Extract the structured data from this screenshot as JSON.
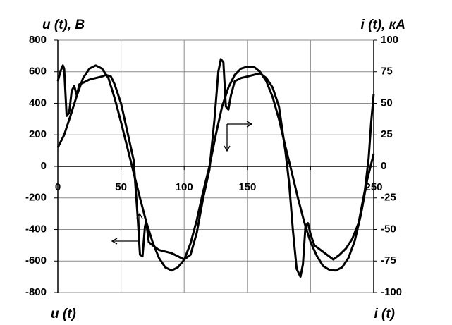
{
  "chart_data": {
    "type": "line",
    "ylabel": "u (t), В",
    "y2label": "i (t), кА",
    "annotations": [
      "u (t)",
      "i (t)"
    ],
    "xlim": [
      0,
      250
    ],
    "xticks": [
      0,
      50,
      100,
      150,
      {
        "value": 200,
        "label": null
      },
      250
    ],
    "ylim": [
      -800,
      800
    ],
    "yticks": [
      -800,
      -600,
      -400,
      -200,
      0,
      200,
      400,
      600,
      800
    ],
    "y2lim": [
      -100,
      100
    ],
    "y2ticks": [
      -100,
      -75,
      -50,
      -25,
      0,
      25,
      50,
      75,
      100
    ],
    "grid": true,
    "series": [
      {
        "name": "u (t)",
        "color": "#000000",
        "x": [
          0,
          2,
          4,
          5,
          7,
          9,
          11,
          13,
          15,
          17,
          20,
          25,
          30,
          35,
          38,
          42,
          45,
          50,
          55,
          60,
          63,
          65,
          67,
          69,
          70,
          72,
          75,
          80,
          85,
          90,
          95,
          100,
          105,
          110,
          115,
          120,
          124,
          127,
          129,
          131,
          133,
          135,
          137,
          140,
          145,
          150,
          155,
          160,
          165,
          170,
          175,
          180,
          183,
          186,
          189,
          192,
          194,
          196,
          198,
          200,
          203,
          208,
          213,
          218,
          223,
          228,
          233,
          238,
          243,
          246,
          248,
          250
        ],
        "values": [
          540,
          600,
          640,
          620,
          320,
          340,
          480,
          510,
          450,
          520,
          530,
          550,
          560,
          570,
          580,
          570,
          520,
          400,
          220,
          40,
          -300,
          -560,
          -570,
          -380,
          -350,
          -480,
          -500,
          -530,
          -540,
          -550,
          -570,
          -590,
          -560,
          -420,
          -200,
          -20,
          300,
          600,
          680,
          660,
          380,
          360,
          450,
          540,
          560,
          570,
          580,
          590,
          560,
          500,
          380,
          100,
          -100,
          -400,
          -650,
          -700,
          -620,
          -380,
          -360,
          -430,
          -500,
          -530,
          -560,
          -590,
          -560,
          -520,
          -460,
          -360,
          -150,
          50,
          280,
          460
        ]
      },
      {
        "name": "i (t)",
        "color": "#000000",
        "axis": "y2",
        "x": [
          0,
          5,
          10,
          15,
          20,
          25,
          30,
          35,
          40,
          45,
          50,
          55,
          60,
          65,
          70,
          75,
          80,
          85,
          90,
          95,
          100,
          105,
          110,
          115,
          120,
          125,
          130,
          135,
          140,
          145,
          150,
          155,
          160,
          165,
          170,
          175,
          180,
          185,
          190,
          195,
          200,
          205,
          210,
          215,
          220,
          225,
          230,
          235,
          240,
          245,
          250
        ],
        "values": [
          15,
          25,
          40,
          56,
          70,
          77.5,
          80,
          77.5,
          70,
          54,
          35,
          15,
          -5,
          -25,
          -44,
          -60,
          -72.5,
          -80,
          -82.5,
          -80,
          -74,
          -61,
          -42.5,
          -20,
          0,
          25,
          47.5,
          62.5,
          72.5,
          77.5,
          79,
          79,
          75,
          67.5,
          55,
          37.5,
          16,
          -4,
          -25,
          -44,
          -60,
          -71,
          -79,
          -82,
          -82.5,
          -80,
          -72.5,
          -59,
          -37.5,
          -10,
          10
        ]
      }
    ]
  }
}
